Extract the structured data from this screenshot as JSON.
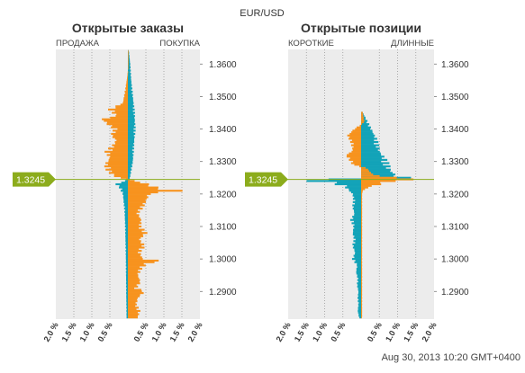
{
  "header": {
    "symbol": "EUR/USD"
  },
  "footer": {
    "timestamp": "Aug 30, 2013 10:20 GMT+0400"
  },
  "current_price": "1.3245",
  "colors": {
    "orange": "#f7931e",
    "teal": "#13a3b8",
    "price_line": "#8cac1c",
    "panel_bg": "#ececec",
    "grid": "#9a9a9a"
  },
  "chart_data": [
    {
      "type": "bar",
      "orientation": "horizontal",
      "title": "Открытые заказы",
      "left_label": "ПРОДАЖА",
      "right_label": "ПОКУПКА",
      "x_ticks": [
        "2.0 %",
        "1.5 %",
        "1.0 %",
        "0.5 %",
        "0.5 %",
        "1.0 %",
        "1.5 %",
        "2.0 %"
      ],
      "y_ticks": [
        "1.3600",
        "1.3500",
        "1.3400",
        "1.3300",
        "1.3200",
        "1.3100",
        "1.3000",
        "1.2900"
      ],
      "xlim": [
        -2.0,
        2.0
      ],
      "ylim": [
        1.2815,
        1.3645
      ],
      "price_step": 0.0005,
      "series": [
        {
          "name": "orange",
          "anchor": [
            [
              1.3635,
              0.02
            ],
            [
              1.36,
              0.02
            ],
            [
              1.356,
              -0.02
            ],
            [
              1.352,
              -0.08
            ],
            [
              1.348,
              -0.15
            ],
            [
              1.346,
              -0.55
            ],
            [
              1.344,
              -0.35
            ],
            [
              1.343,
              -0.78
            ],
            [
              1.341,
              -0.55
            ],
            [
              1.34,
              -0.4
            ],
            [
              1.338,
              -0.5
            ],
            [
              1.3365,
              -0.35
            ],
            [
              1.335,
              -0.45
            ],
            [
              1.333,
              -0.65
            ],
            [
              1.331,
              -0.55
            ],
            [
              1.329,
              -0.68
            ],
            [
              1.327,
              -0.6
            ],
            [
              1.3255,
              -0.4
            ],
            [
              1.3245,
              -0.05
            ],
            [
              1.324,
              0.2
            ],
            [
              1.323,
              0.6
            ],
            [
              1.322,
              0.85
            ],
            [
              1.321,
              1.52
            ],
            [
              1.32,
              0.65
            ],
            [
              1.318,
              0.55
            ],
            [
              1.316,
              0.45
            ],
            [
              1.314,
              0.3
            ],
            [
              1.312,
              0.4
            ],
            [
              1.31,
              0.38
            ],
            [
              1.308,
              0.55
            ],
            [
              1.306,
              0.35
            ],
            [
              1.304,
              0.5
            ],
            [
              1.302,
              0.35
            ],
            [
              1.3,
              0.45
            ],
            [
              1.2995,
              0.98
            ],
            [
              1.2985,
              0.55
            ],
            [
              1.297,
              0.4
            ],
            [
              1.295,
              0.3
            ],
            [
              1.293,
              0.38
            ],
            [
              1.291,
              0.25
            ],
            [
              1.29,
              0.5
            ],
            [
              1.288,
              0.3
            ],
            [
              1.286,
              0.25
            ],
            [
              1.284,
              0.35
            ],
            [
              1.282,
              0.3
            ]
          ]
        },
        {
          "name": "teal",
          "anchor": [
            [
              1.364,
              0.03
            ],
            [
              1.36,
              0.07
            ],
            [
              1.355,
              0.1
            ],
            [
              1.35,
              0.15
            ],
            [
              1.345,
              0.2
            ],
            [
              1.34,
              0.22
            ],
            [
              1.335,
              0.18
            ],
            [
              1.33,
              0.15
            ],
            [
              1.326,
              0.08
            ],
            [
              1.3245,
              0.05
            ],
            [
              1.323,
              -0.35
            ],
            [
              1.322,
              -0.25
            ],
            [
              1.32,
              -0.15
            ],
            [
              1.315,
              -0.1
            ],
            [
              1.31,
              -0.08
            ],
            [
              1.3,
              -0.06
            ],
            [
              1.29,
              -0.05
            ],
            [
              1.282,
              -0.04
            ]
          ]
        }
      ]
    },
    {
      "type": "bar",
      "orientation": "horizontal",
      "title": "Открытые позиции",
      "left_label": "КОРОТКИЕ",
      "right_label": "ДЛИННЫЕ",
      "x_ticks": [
        "2.0 %",
        "1.5 %",
        "1.0 %",
        "0.5 %",
        "0.5 %",
        "1.0 %",
        "1.5 %",
        "2.0 %"
      ],
      "y_ticks": [
        "1.3600",
        "1.3500",
        "1.3400",
        "1.3300",
        "1.3200",
        "1.3100",
        "1.3000",
        "1.2900"
      ],
      "xlim": [
        -2.0,
        2.0
      ],
      "ylim": [
        1.2815,
        1.3645
      ],
      "price_step": 0.0005,
      "series": [
        {
          "name": "orange",
          "anchor": [
            [
              1.345,
              0.05
            ],
            [
              1.342,
              0.1
            ],
            [
              1.34,
              -0.2
            ],
            [
              1.338,
              -0.4
            ],
            [
              1.336,
              -0.3
            ],
            [
              1.334,
              -0.25
            ],
            [
              1.333,
              -0.28
            ],
            [
              1.332,
              -0.45
            ],
            [
              1.33,
              -0.3
            ],
            [
              1.329,
              -0.25
            ],
            [
              1.328,
              0.15
            ],
            [
              1.327,
              0.25
            ],
            [
              1.326,
              0.35
            ],
            [
              1.3255,
              0.6
            ],
            [
              1.325,
              1.0
            ],
            [
              1.3245,
              1.85
            ],
            [
              1.324,
              0.95
            ],
            [
              1.323,
              0.55
            ],
            [
              1.322,
              0.2
            ],
            [
              1.321,
              0.05
            ],
            [
              1.32,
              0.03
            ]
          ]
        },
        {
          "name": "teal",
          "anchor": [
            [
              1.345,
              0.05
            ],
            [
              1.343,
              0.15
            ],
            [
              1.341,
              0.25
            ],
            [
              1.34,
              0.3
            ],
            [
              1.339,
              0.35
            ],
            [
              1.337,
              0.45
            ],
            [
              1.335,
              0.5
            ],
            [
              1.333,
              0.55
            ],
            [
              1.331,
              0.7
            ],
            [
              1.329,
              0.8
            ],
            [
              1.3275,
              0.85
            ],
            [
              1.3265,
              0.95
            ],
            [
              1.3255,
              1.05
            ],
            [
              1.325,
              1.4
            ],
            [
              1.3245,
              -1.15
            ],
            [
              1.324,
              -1.5
            ],
            [
              1.3235,
              -0.95
            ],
            [
              1.3225,
              -0.5
            ],
            [
              1.321,
              -0.35
            ],
            [
              1.32,
              -0.25
            ],
            [
              1.318,
              -0.22
            ],
            [
              1.316,
              -0.25
            ],
            [
              1.314,
              -0.2
            ],
            [
              1.312,
              -0.3
            ],
            [
              1.31,
              -0.22
            ],
            [
              1.308,
              -0.25
            ],
            [
              1.306,
              -0.2
            ],
            [
              1.304,
              -0.25
            ],
            [
              1.302,
              -0.18
            ],
            [
              1.3,
              -0.25
            ],
            [
              1.298,
              -0.12
            ],
            [
              1.296,
              -0.15
            ],
            [
              1.294,
              -0.1
            ],
            [
              1.292,
              -0.12
            ],
            [
              1.29,
              -0.08
            ],
            [
              1.288,
              -0.1
            ],
            [
              1.286,
              -0.08
            ],
            [
              1.284,
              -0.1
            ],
            [
              1.282,
              -0.06
            ]
          ]
        }
      ]
    }
  ]
}
